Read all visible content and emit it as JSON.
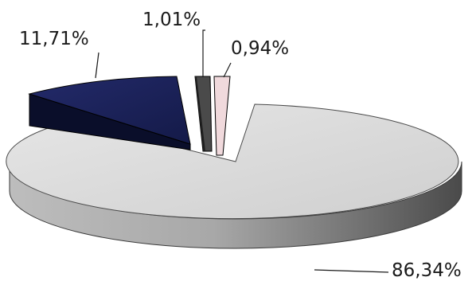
{
  "chart_data": {
    "type": "pie",
    "style": "3d-exploded",
    "slices": [
      {
        "value": 86.34,
        "label": "86,34%",
        "color": "#d4d4d4"
      },
      {
        "value": 11.71,
        "label": "11,71%",
        "color": "#1b2158"
      },
      {
        "value": 1.01,
        "label": "1,01%",
        "color": "#4a4a4a"
      },
      {
        "value": 0.94,
        "label": "0,94%",
        "color": "#f0d9dc"
      }
    ],
    "legend": "none"
  }
}
